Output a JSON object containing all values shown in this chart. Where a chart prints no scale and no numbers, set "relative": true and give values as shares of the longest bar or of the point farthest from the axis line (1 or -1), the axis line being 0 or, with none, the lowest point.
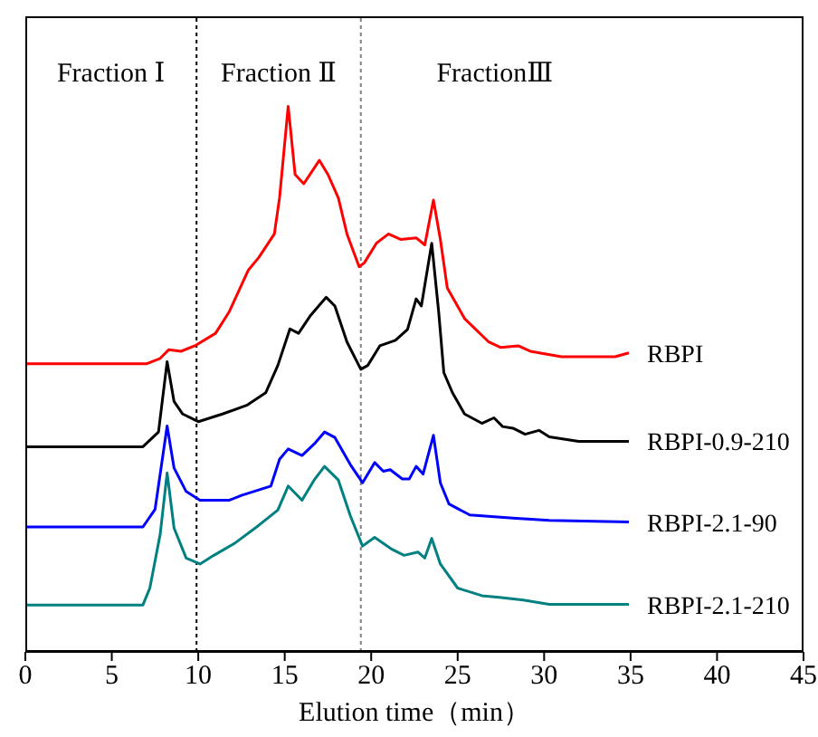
{
  "chart_data": {
    "type": "line",
    "relative": true,
    "xlabel": "Elution time（min）",
    "xlim": [
      0,
      45
    ],
    "xticks": [
      0,
      5,
      10,
      15,
      20,
      25,
      30,
      35,
      40,
      45
    ],
    "marker": "none",
    "line_style": "solid",
    "annotations": [
      "Fraction Ⅰ",
      "Fraction Ⅱ",
      "FractionⅢ"
    ],
    "ref_lines": [
      {
        "axis": "x",
        "value": 9.9,
        "color": "#000000",
        "line_style": "dotted"
      },
      {
        "axis": "x",
        "value": 19.4,
        "color": "#808080",
        "line_style": "dotted"
      }
    ],
    "series": [
      {
        "name": "RBPI",
        "color": "#ff0000",
        "x": [
          0,
          7,
          7.8,
          8.3,
          9,
          9.8,
          11,
          11.8,
          12.9,
          13.5,
          14.4,
          14.7,
          15.2,
          15.6,
          16.1,
          17,
          17.5,
          18.1,
          18.6,
          19.3,
          19.6,
          20.3,
          21,
          21.7,
          22.6,
          23.1,
          23.6,
          24,
          24.4,
          25.4,
          26.8,
          27.5,
          28.5,
          29.2,
          31,
          34.1,
          34.9
        ],
        "values": [
          0.528,
          0.528,
          0.538,
          0.554,
          0.551,
          0.561,
          0.584,
          0.624,
          0.7,
          0.723,
          0.766,
          0.832,
          1.0,
          0.875,
          0.858,
          0.901,
          0.875,
          0.832,
          0.766,
          0.706,
          0.713,
          0.749,
          0.766,
          0.756,
          0.759,
          0.746,
          0.828,
          0.756,
          0.667,
          0.611,
          0.568,
          0.558,
          0.561,
          0.551,
          0.541,
          0.541,
          0.548
        ]
      },
      {
        "name": "RBPI-0.9-210",
        "color": "#000000",
        "x": [
          0,
          6.8,
          7.7,
          8.2,
          8.6,
          9.1,
          10,
          11.4,
          12.8,
          13.9,
          14.6,
          15.3,
          15.8,
          16.5,
          17.4,
          17.9,
          18.6,
          19.4,
          19.8,
          20.5,
          21.4,
          22.1,
          22.6,
          22.9,
          23.5,
          23.9,
          24.2,
          24.7,
          25.4,
          26.4,
          27.1,
          27.6,
          28.2,
          28.9,
          29.7,
          30.3,
          32,
          34.9
        ],
        "values": [
          0.376,
          0.376,
          0.403,
          0.532,
          0.459,
          0.436,
          0.422,
          0.436,
          0.452,
          0.475,
          0.525,
          0.592,
          0.584,
          0.617,
          0.65,
          0.634,
          0.568,
          0.518,
          0.525,
          0.561,
          0.571,
          0.591,
          0.647,
          0.634,
          0.749,
          0.624,
          0.512,
          0.475,
          0.436,
          0.419,
          0.429,
          0.413,
          0.41,
          0.399,
          0.406,
          0.394,
          0.386,
          0.386
        ]
      },
      {
        "name": "RBPI-2.1-90",
        "color": "#0000ff",
        "x": [
          0,
          6.8,
          7.5,
          8.2,
          8.6,
          9.3,
          10.1,
          11.8,
          12.5,
          14.2,
          14.7,
          15.2,
          16,
          16.7,
          17.3,
          17.9,
          18.8,
          19.5,
          20.2,
          20.7,
          21.1,
          21.8,
          22.2,
          22.6,
          23,
          23.6,
          24,
          24.5,
          25.7,
          28.2,
          30.3,
          34.9
        ],
        "values": [
          0.229,
          0.229,
          0.261,
          0.414,
          0.337,
          0.294,
          0.278,
          0.278,
          0.287,
          0.304,
          0.353,
          0.372,
          0.36,
          0.381,
          0.403,
          0.393,
          0.343,
          0.31,
          0.347,
          0.331,
          0.334,
          0.317,
          0.317,
          0.34,
          0.326,
          0.397,
          0.31,
          0.271,
          0.251,
          0.245,
          0.241,
          0.238
        ]
      },
      {
        "name": "RBPI-2.1-210",
        "color": "#008080",
        "x": [
          0,
          6.8,
          7.2,
          7.8,
          8.2,
          8.6,
          9.3,
          10.1,
          10.9,
          12.1,
          13.5,
          14.6,
          15.2,
          16,
          16.7,
          17.3,
          18.1,
          18.8,
          19.5,
          20.2,
          21.2,
          21.9,
          22.7,
          23.1,
          23.5,
          24,
          25,
          26.4,
          27.4,
          28.8,
          30.3,
          34.9
        ],
        "values": [
          0.086,
          0.086,
          0.117,
          0.216,
          0.328,
          0.227,
          0.172,
          0.161,
          0.177,
          0.199,
          0.232,
          0.26,
          0.304,
          0.278,
          0.315,
          0.34,
          0.315,
          0.249,
          0.194,
          0.21,
          0.188,
          0.177,
          0.183,
          0.172,
          0.208,
          0.161,
          0.117,
          0.103,
          0.1,
          0.095,
          0.087,
          0.087
        ]
      }
    ]
  }
}
